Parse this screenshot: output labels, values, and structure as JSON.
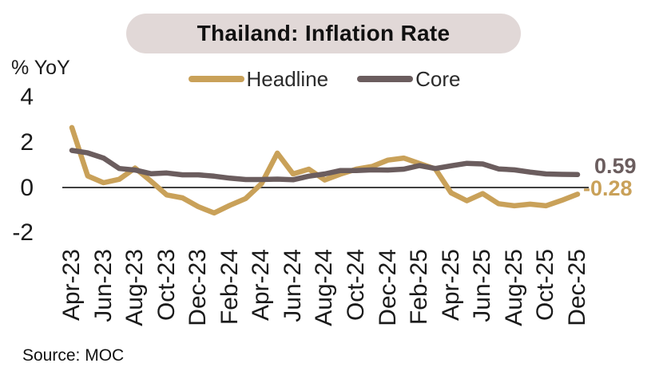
{
  "title": "Thailand: Inflation Rate",
  "y_axis_label": "% YoY",
  "source": "Source: MOC",
  "colors": {
    "background": "#FFFFFF",
    "title_pill_bg": "#E1D8D7",
    "title_text": "#111111",
    "axis_text": "#1A1A1A",
    "legend_text": "#2B2B2B",
    "zero_line": "#404040",
    "source_text": "#111111"
  },
  "chart_data": {
    "type": "line",
    "title": "Thailand: Inflation Rate",
    "xlabel": "",
    "ylabel": "% YoY",
    "ylim": [
      -2,
      4
    ],
    "yticks": [
      4,
      2,
      0,
      -2
    ],
    "grid": false,
    "legend_position": "top",
    "categories": [
      "Apr-23",
      "May-23",
      "Jun-23",
      "Jul-23",
      "Aug-23",
      "Sep-23",
      "Oct-23",
      "Nov-23",
      "Dec-23",
      "Jan-24",
      "Feb-24",
      "Mar-24",
      "Apr-24",
      "May-24",
      "Jun-24",
      "Jul-24",
      "Aug-24",
      "Sep-24",
      "Oct-24",
      "Nov-24",
      "Dec-24",
      "Jan-25",
      "Feb-25",
      "Mar-25",
      "Apr-25",
      "May-25",
      "Jun-25",
      "Jul-25",
      "Aug-25",
      "Sep-25",
      "Oct-25",
      "Nov-25",
      "Dec-25"
    ],
    "xtick_labels": [
      "Apr-23",
      "Jun-23",
      "Aug-23",
      "Oct-23",
      "Dec-23",
      "Feb-24",
      "Apr-24",
      "Jun-24",
      "Aug-24",
      "Oct-24",
      "Dec-24",
      "Feb-25",
      "Apr-25",
      "Jun-25",
      "Aug-25",
      "Oct-25",
      "Dec-25"
    ],
    "series": [
      {
        "name": "Headline",
        "color": "#C9A159",
        "values": [
          2.67,
          0.53,
          0.23,
          0.38,
          0.88,
          0.3,
          -0.31,
          -0.44,
          -0.83,
          -1.11,
          -0.77,
          -0.47,
          0.19,
          1.54,
          0.62,
          0.83,
          0.35,
          0.61,
          0.83,
          0.95,
          1.23,
          1.32,
          1.08,
          0.84,
          -0.22,
          -0.57,
          -0.25,
          -0.7,
          -0.79,
          -0.72,
          -0.79,
          -0.55,
          -0.28
        ]
      },
      {
        "name": "Core",
        "color": "#6B5D5E",
        "values": [
          1.66,
          1.55,
          1.32,
          0.86,
          0.79,
          0.63,
          0.66,
          0.58,
          0.58,
          0.52,
          0.43,
          0.37,
          0.37,
          0.39,
          0.36,
          0.52,
          0.62,
          0.77,
          0.77,
          0.8,
          0.79,
          0.83,
          0.99,
          0.86,
          0.98,
          1.09,
          1.06,
          0.84,
          0.8,
          0.7,
          0.62,
          0.6,
          0.59
        ]
      }
    ],
    "end_labels": {
      "core": "0.59",
      "headline": "-0.28"
    }
  }
}
